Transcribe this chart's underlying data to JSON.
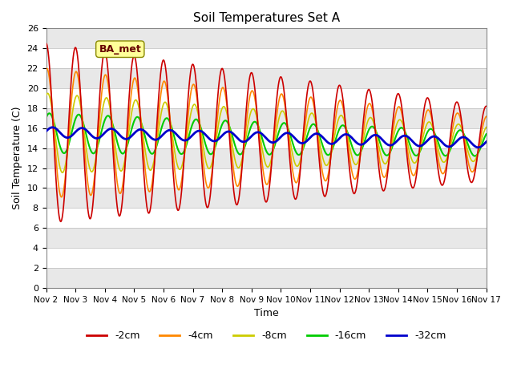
{
  "title": "Soil Temperatures Set A",
  "xlabel": "Time",
  "ylabel": "Soil Temperature (C)",
  "ylim": [
    0,
    26
  ],
  "line_colors": {
    "-2cm": "#cc0000",
    "-4cm": "#ff8800",
    "-8cm": "#cccc00",
    "-16cm": "#00cc00",
    "-32cm": "#0000cc"
  },
  "legend_label": "BA_met",
  "x_tick_labels": [
    "Nov 2",
    "Nov 3",
    "Nov 4",
    "Nov 5",
    "Nov 6",
    "Nov 7",
    "Nov 8",
    "Nov 9",
    "Nov 10",
    "Nov 11",
    "Nov 12",
    "Nov 13",
    "Nov 14",
    "Nov 15",
    "Nov 16",
    "Nov 17"
  ],
  "background_color": "#ffffff",
  "band_colors": [
    "#e8e8e8",
    "#ffffff"
  ],
  "band_step": 2
}
